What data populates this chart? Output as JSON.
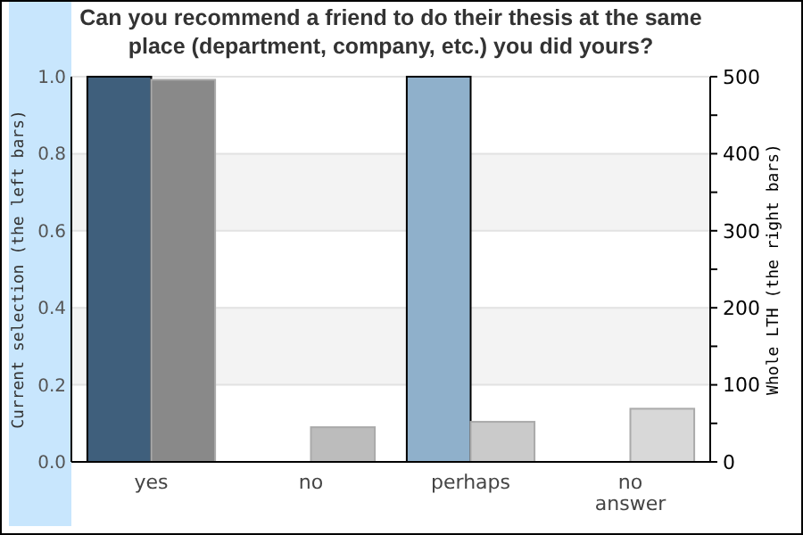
{
  "chart_data": {
    "type": "bar",
    "title": "Can you recommend a friend to do their thesis at the same place (department, company, etc.) you did yours?",
    "ylabel": "Current selection (the left bars)",
    "y2label": "Whole LTH (the right bars)",
    "categories": [
      "yes",
      "no",
      "perhaps",
      "no answer"
    ],
    "series": [
      {
        "values": [
          1.0,
          0,
          1.0,
          0
        ],
        "colors": [
          "#3f5f7c",
          "#3f5f7c",
          "#8fb0cb",
          "#8fb0cb"
        ]
      },
      {
        "axis": "y2",
        "values": [
          496,
          45,
          52,
          69
        ],
        "colors": [
          "#898989",
          "#bcbcbc",
          "#cacaca",
          "#d8d8d8"
        ]
      }
    ],
    "ylim": [
      0,
      1
    ],
    "yticks": [
      {
        "value": 0,
        "label": "0.0"
      },
      0.2,
      0.4,
      0.6,
      0.8,
      {
        "value": 1,
        "label": "1.0"
      }
    ],
    "y2lim": [
      0,
      500
    ],
    "y2ticks": [
      0,
      {
        "value": 50,
        "label": null
      },
      100,
      {
        "value": 150,
        "label": null
      },
      200,
      {
        "value": 250,
        "label": null
      },
      300,
      {
        "value": 350,
        "label": null
      },
      400,
      {
        "value": 450,
        "label": null
      },
      500
    ],
    "grid": "y"
  }
}
